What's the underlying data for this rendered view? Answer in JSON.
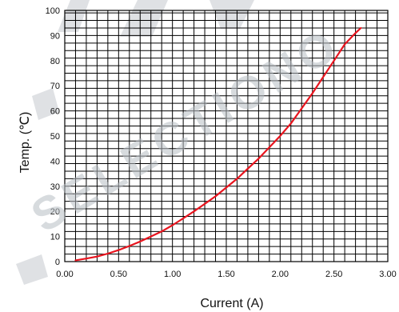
{
  "watermark": "SELECTIONO",
  "chart_data": {
    "type": "line",
    "title": "",
    "xlabel": "Current  (A)",
    "ylabel": "Temp.  (℃)",
    "xlim": [
      0,
      3
    ],
    "ylim": [
      0,
      100
    ],
    "x_ticks": [
      "0.00",
      "0.50",
      "1.00",
      "1.50",
      "2.00",
      "2.50",
      "3.00"
    ],
    "y_ticks": [
      "0",
      "10",
      "20",
      "30",
      "40",
      "50",
      "60",
      "70",
      "80",
      "90",
      "100"
    ],
    "grid": true,
    "series": [
      {
        "color": "#e8141e",
        "x": [
          0.1,
          0.2,
          0.3,
          0.4,
          0.5,
          0.6,
          0.7,
          0.8,
          0.9,
          1.0,
          1.1,
          1.2,
          1.3,
          1.4,
          1.5,
          1.6,
          1.7,
          1.8,
          1.9,
          2.0,
          2.1,
          2.2,
          2.3,
          2.4,
          2.5,
          2.6,
          2.7,
          2.75
        ],
        "y": [
          0.5,
          1.2,
          2.0,
          3.2,
          4.6,
          6.2,
          8.0,
          10.0,
          12.0,
          14.5,
          17.2,
          20.0,
          23.0,
          26.0,
          29.5,
          33.0,
          37.0,
          41.0,
          45.5,
          50.0,
          55.0,
          61.0,
          67.0,
          73.5,
          80.0,
          86.5,
          91.0,
          93.0
        ]
      }
    ]
  }
}
